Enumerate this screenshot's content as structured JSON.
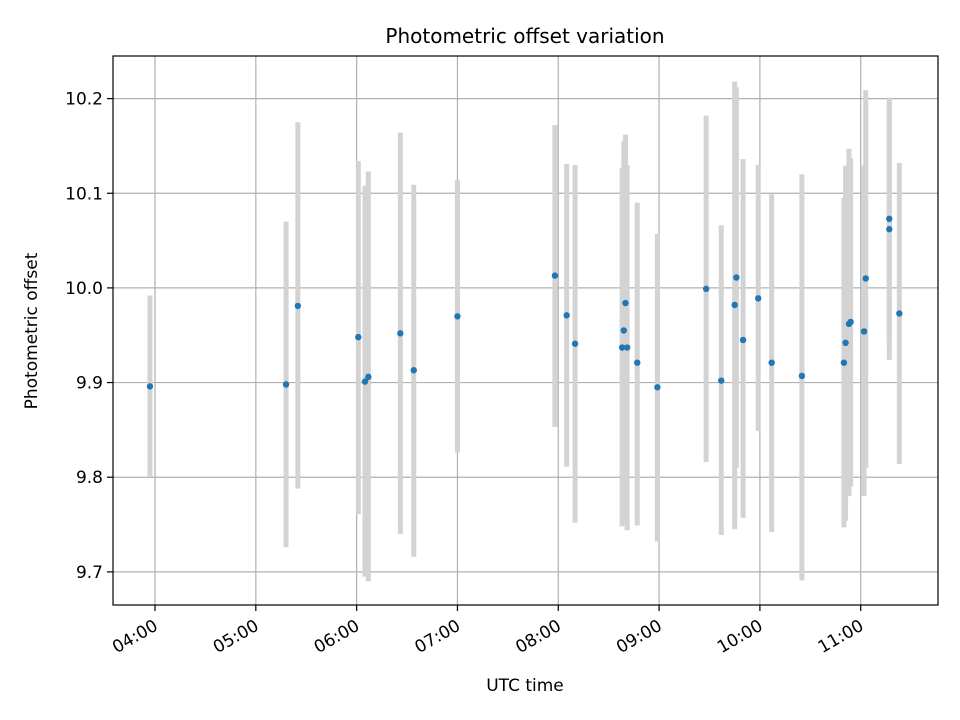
{
  "chart_data": {
    "type": "scatter",
    "title": "Photometric offset variation",
    "xlabel": "UTC time",
    "ylabel": "Photometric offset",
    "grid": true,
    "x_unit": "HH:MM",
    "xlim": [
      "03:35",
      "11:46"
    ],
    "ylim": [
      9.665,
      10.245
    ],
    "x_ticks": [
      "04:00",
      "05:00",
      "06:00",
      "07:00",
      "08:00",
      "09:00",
      "10:00",
      "11:00"
    ],
    "y_ticks": [
      "9.7",
      "9.8",
      "9.9",
      "10.0",
      "10.1",
      "10.2"
    ],
    "marker_color": "#1f77b4",
    "errorbar_color": "#d3d3d3",
    "series": [
      {
        "points": [
          {
            "x": "03:57",
            "y": 9.896,
            "ylow": 9.801,
            "yhigh": 9.992
          },
          {
            "x": "05:18",
            "y": 9.898,
            "ylow": 9.726,
            "yhigh": 10.07
          },
          {
            "x": "05:25",
            "y": 9.981,
            "ylow": 9.788,
            "yhigh": 10.175
          },
          {
            "x": "06:01",
            "y": 9.948,
            "ylow": 9.761,
            "yhigh": 10.134
          },
          {
            "x": "06:05",
            "y": 9.901,
            "ylow": 9.695,
            "yhigh": 10.108
          },
          {
            "x": "06:07",
            "y": 9.906,
            "ylow": 9.69,
            "yhigh": 10.123
          },
          {
            "x": "06:26",
            "y": 9.952,
            "ylow": 9.74,
            "yhigh": 10.164
          },
          {
            "x": "06:34",
            "y": 9.913,
            "ylow": 9.716,
            "yhigh": 10.109
          },
          {
            "x": "07:00",
            "y": 9.97,
            "ylow": 9.826,
            "yhigh": 10.114
          },
          {
            "x": "07:58",
            "y": 10.013,
            "ylow": 9.853,
            "yhigh": 10.172
          },
          {
            "x": "08:05",
            "y": 9.971,
            "ylow": 9.811,
            "yhigh": 10.131
          },
          {
            "x": "08:10",
            "y": 9.941,
            "ylow": 9.752,
            "yhigh": 10.13
          },
          {
            "x": "08:38",
            "y": 9.937,
            "ylow": 9.748,
            "yhigh": 10.127
          },
          {
            "x": "08:39",
            "y": 9.955,
            "ylow": 9.755,
            "yhigh": 10.155
          },
          {
            "x": "08:40",
            "y": 9.984,
            "ylow": 9.76,
            "yhigh": 10.162
          },
          {
            "x": "08:41",
            "y": 9.937,
            "ylow": 9.744,
            "yhigh": 10.13
          },
          {
            "x": "08:47",
            "y": 9.921,
            "ylow": 9.749,
            "yhigh": 10.09
          },
          {
            "x": "08:59",
            "y": 9.895,
            "ylow": 9.732,
            "yhigh": 10.057
          },
          {
            "x": "09:28",
            "y": 9.999,
            "ylow": 9.816,
            "yhigh": 10.182
          },
          {
            "x": "09:37",
            "y": 9.902,
            "ylow": 9.739,
            "yhigh": 10.066
          },
          {
            "x": "09:45",
            "y": 9.982,
            "ylow": 9.745,
            "yhigh": 10.218
          },
          {
            "x": "09:46",
            "y": 10.011,
            "ylow": 9.81,
            "yhigh": 10.212
          },
          {
            "x": "09:50",
            "y": 9.945,
            "ylow": 9.757,
            "yhigh": 10.136
          },
          {
            "x": "09:59",
            "y": 9.989,
            "ylow": 9.849,
            "yhigh": 10.13
          },
          {
            "x": "10:07",
            "y": 9.921,
            "ylow": 9.742,
            "yhigh": 10.099
          },
          {
            "x": "10:25",
            "y": 9.907,
            "ylow": 9.691,
            "yhigh": 10.12
          },
          {
            "x": "10:50",
            "y": 9.921,
            "ylow": 9.747,
            "yhigh": 10.095
          },
          {
            "x": "10:51",
            "y": 9.942,
            "ylow": 9.754,
            "yhigh": 10.129
          },
          {
            "x": "10:53",
            "y": 9.962,
            "ylow": 9.78,
            "yhigh": 10.147
          },
          {
            "x": "10:54",
            "y": 9.964,
            "ylow": 9.79,
            "yhigh": 10.137
          },
          {
            "x": "11:02",
            "y": 9.954,
            "ylow": 9.78,
            "yhigh": 10.129
          },
          {
            "x": "11:03",
            "y": 10.01,
            "ylow": 9.81,
            "yhigh": 10.209
          },
          {
            "x": "11:17",
            "y": 10.062,
            "ylow": 9.924,
            "yhigh": 10.2
          },
          {
            "x": "11:17",
            "y": 10.073,
            "ylow": 9.945,
            "yhigh": 10.201
          },
          {
            "x": "11:23",
            "y": 9.973,
            "ylow": 9.814,
            "yhigh": 10.132
          }
        ]
      }
    ]
  }
}
